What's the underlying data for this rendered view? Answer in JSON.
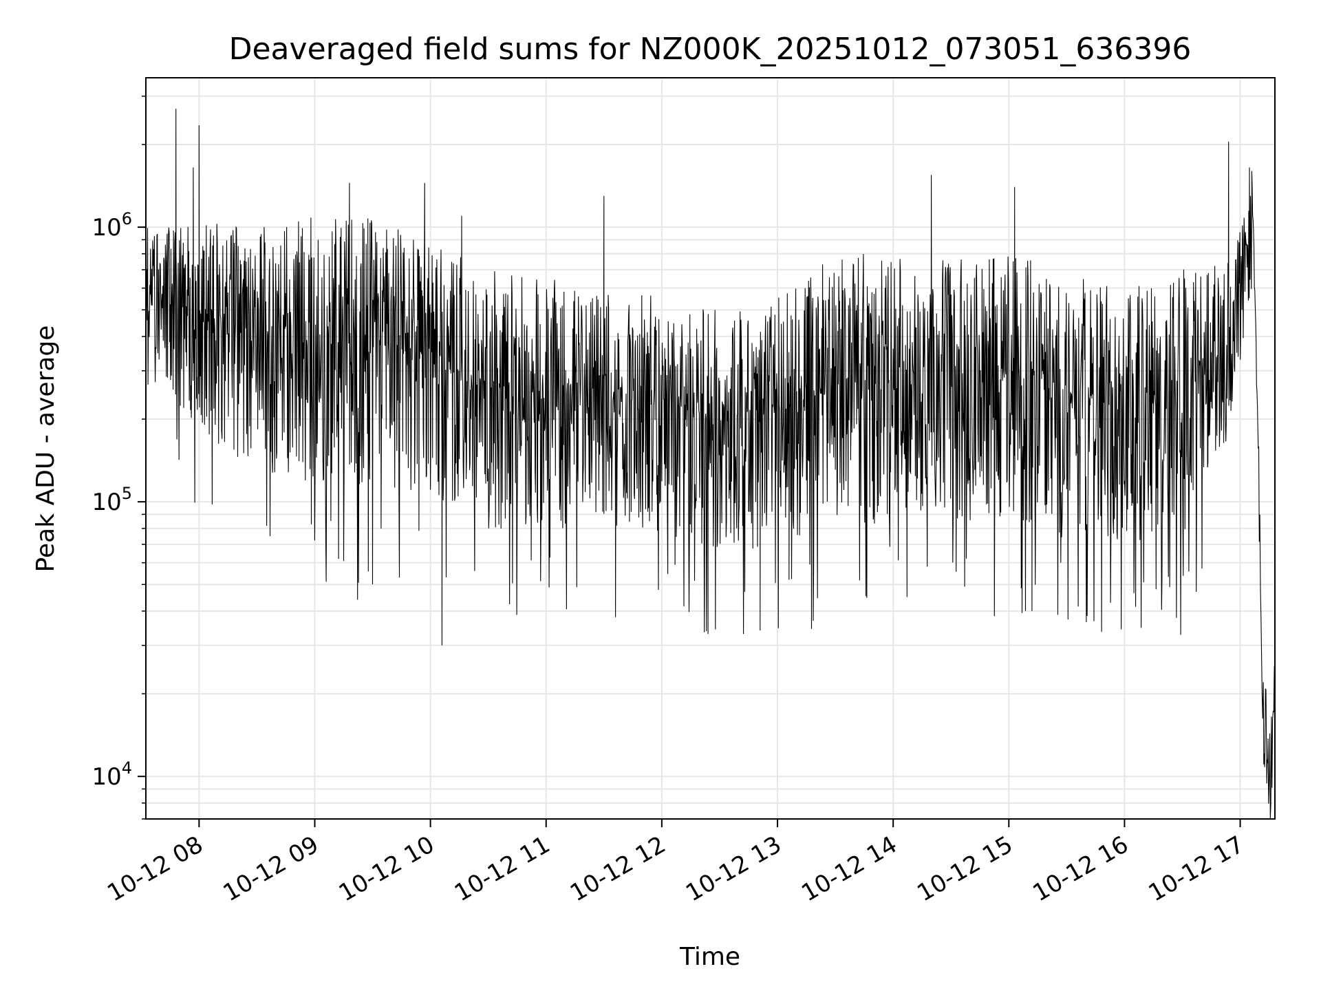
{
  "chart_data": {
    "type": "line",
    "title": "Deaveraged field sums for NZ000K_20251012_073051_636396",
    "xlabel": "Time",
    "ylabel": "Peak ADU - average",
    "yscale": "log",
    "grid": true,
    "line_color": "#000000",
    "grid_color": "#e6e6e6",
    "xlim_hours": [
      7.54,
      17.3
    ],
    "ylim": [
      7000,
      3500000
    ],
    "x_ticks": [
      {
        "value": 8,
        "label": "10-12 08"
      },
      {
        "value": 9,
        "label": "10-12 09"
      },
      {
        "value": 10,
        "label": "10-12 10"
      },
      {
        "value": 11,
        "label": "10-12 11"
      },
      {
        "value": 12,
        "label": "10-12 12"
      },
      {
        "value": 13,
        "label": "10-12 13"
      },
      {
        "value": 14,
        "label": "10-12 14"
      },
      {
        "value": 15,
        "label": "10-12 15"
      },
      {
        "value": 16,
        "label": "10-12 16"
      },
      {
        "value": 17,
        "label": "10-12 17"
      }
    ],
    "y_ticks": [
      {
        "value": 10000,
        "base": "10",
        "exp": "4"
      },
      {
        "value": 100000,
        "base": "10",
        "exp": "5"
      },
      {
        "value": 1000000,
        "base": "10",
        "exp": "6"
      }
    ],
    "series": [
      {
        "name": "field sums",
        "band_profile": {
          "x": [
            7.54,
            8.0,
            8.5,
            9.0,
            9.5,
            10.0,
            10.5,
            11.0,
            11.5,
            12.0,
            12.5,
            13.0,
            13.5,
            14.0,
            14.5,
            15.0,
            15.5,
            16.0,
            16.5,
            16.9,
            17.08
          ],
          "upper": [
            1000000,
            1050000,
            1000000,
            1100000,
            1100000,
            900000,
            700000,
            650000,
            600000,
            560000,
            500000,
            560000,
            800000,
            800000,
            760000,
            800000,
            700000,
            600000,
            700000,
            750000,
            1300000
          ],
          "lower": [
            350000,
            140000,
            110000,
            95000,
            85000,
            90000,
            65000,
            65000,
            70000,
            65000,
            55000,
            55000,
            65000,
            70000,
            70000,
            70000,
            60000,
            60000,
            60000,
            150000,
            500000
          ]
        },
        "spikes": [
          [
            7.8,
            2700000
          ],
          [
            8.0,
            2350000
          ],
          [
            7.95,
            1650000
          ],
          [
            9.3,
            1450000
          ],
          [
            9.95,
            1450000
          ],
          [
            10.27,
            1100000
          ],
          [
            11.5,
            1300000
          ],
          [
            14.33,
            1550000
          ],
          [
            15.05,
            1400000
          ],
          [
            16.9,
            2050000
          ],
          [
            17.08,
            1650000
          ],
          [
            10.1,
            30000
          ],
          [
            12.4,
            33000
          ],
          [
            12.85,
            34000
          ],
          [
            9.37,
            44000
          ],
          [
            15.2,
            40000
          ],
          [
            14.12,
            45000
          ],
          [
            11.6,
            38000
          ],
          [
            13.1,
            52000
          ],
          [
            16.62,
            47000
          ]
        ],
        "tail": {
          "x": [
            17.1,
            17.13,
            17.16,
            17.2,
            17.23,
            17.26,
            17.3
          ],
          "values": [
            1650000,
            500000,
            120000,
            16000,
            14000,
            10000,
            22000
          ]
        }
      }
    ]
  }
}
